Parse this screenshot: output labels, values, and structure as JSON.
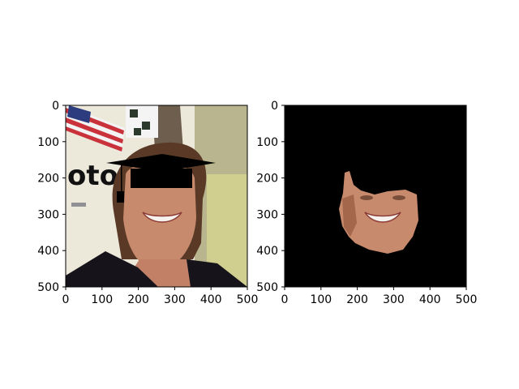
{
  "chart_data": [
    {
      "type": "image",
      "title": "",
      "xlabel": "",
      "ylabel": "",
      "xlim": [
        0,
        500
      ],
      "ylim": [
        500,
        0
      ],
      "x_ticks": [
        "0",
        "100",
        "200",
        "300",
        "400",
        "500"
      ],
      "y_ticks": [
        "0",
        "100",
        "200",
        "300",
        "400",
        "500"
      ],
      "grid": false,
      "image_content": "photo of smiling woman wearing drawn graduation cap with black bar over eyes, US flag at top-left"
    },
    {
      "type": "image",
      "title": "",
      "xlabel": "",
      "ylabel": "",
      "xlim": [
        0,
        500
      ],
      "ylim": [
        500,
        0
      ],
      "x_ticks": [
        "0",
        "100",
        "200",
        "300",
        "400",
        "500"
      ],
      "y_ticks": [
        "0",
        "100",
        "200",
        "300",
        "400",
        "500"
      ],
      "grid": false,
      "image_content": "segmented face region on black background"
    }
  ],
  "colors": {
    "axes_background": "#000000",
    "skin": "#c88a6c",
    "skin_shadow": "#a5674c",
    "hair": "#5a3a26",
    "wall": "#e9e6dc",
    "cap": "#000000"
  }
}
